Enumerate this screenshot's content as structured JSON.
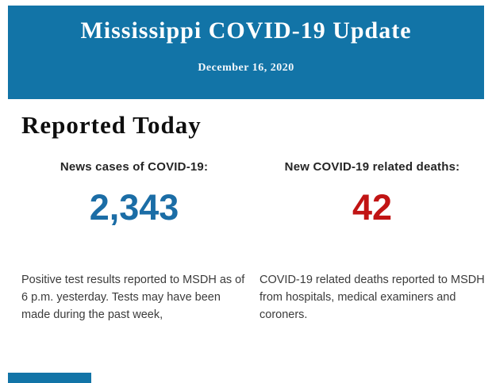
{
  "header": {
    "background_color": "#1274a7",
    "title": "Mississippi COVID-19 Update",
    "date": "December 16, 2020",
    "text_color": "#ffffff"
  },
  "section": {
    "heading": "Reported Today"
  },
  "stats": [
    {
      "label": "News cases of COVID-19:",
      "value": "2,343",
      "value_color": "#1b6da6",
      "description": "Positive test results reported to MSDH as of 6 p.m. yesterday. Tests may have been made during the past week,"
    },
    {
      "label": "New COVID-19 related deaths:",
      "value": "42",
      "value_color": "#c11414",
      "description": "COVID-19 related deaths reported to MSDH from hospitals, medical examiners and coroners."
    }
  ],
  "footer": {
    "next_section_band_color": "#1274a7"
  }
}
